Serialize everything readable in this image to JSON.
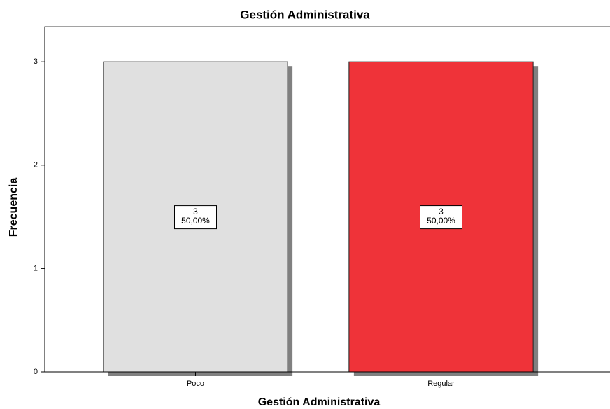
{
  "chart_data": {
    "type": "bar",
    "title": "Gestión Administrativa",
    "x_label": "Gestión Administrativa",
    "y_label": "Frecuencia",
    "categories": [
      "Poco",
      "Regular"
    ],
    "values": [
      3,
      3
    ],
    "percentages": [
      50,
      50
    ],
    "percentage_labels": [
      "50,00%",
      "50,00%"
    ],
    "colors": [
      "#e0e0e0",
      "#ef3339"
    ],
    "ylim": [
      0,
      3.34
    ],
    "yticks": [
      0,
      1,
      2,
      3
    ],
    "grid": false
  }
}
